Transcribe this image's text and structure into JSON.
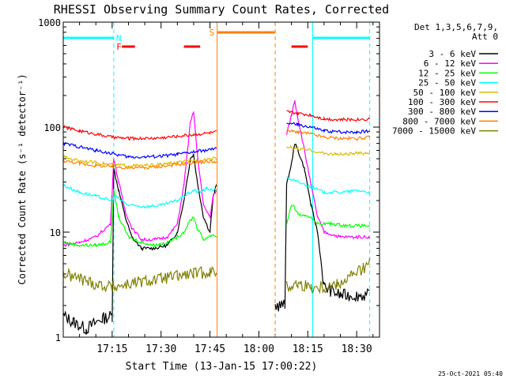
{
  "chart_data": {
    "type": "line",
    "title": "RHESSI Observing Summary Count Rates, Corrected",
    "ylabel": "Corrected Count Rate (s⁻¹ detector⁻¹)",
    "xlabel": "Start Time (13-Jan-15 17:00:22)",
    "yscale": "log",
    "ylim": [
      1,
      1000
    ],
    "xlim_minutes": [
      0,
      97
    ],
    "x_ticks": [
      {
        "label": "17:15",
        "minute": 15
      },
      {
        "label": "17:30",
        "minute": 30
      },
      {
        "label": "17:45",
        "minute": 45
      },
      {
        "label": "18:00",
        "minute": 60
      },
      {
        "label": "18:15",
        "minute": 75
      },
      {
        "label": "18:30",
        "minute": 90
      }
    ],
    "y_ticks": [
      {
        "label": "1",
        "value": 1
      },
      {
        "label": "10",
        "value": 10
      },
      {
        "label": "100",
        "value": 100
      },
      {
        "label": "1000",
        "value": 1000
      }
    ],
    "legend_header": [
      "Det 1,3,5,6,7,9,",
      "Att 0"
    ],
    "legend_position": "right",
    "series": [
      {
        "name": "3 - 6 keV",
        "color": "#000000",
        "points": [
          [
            0,
            1.6
          ],
          [
            3,
            1.4
          ],
          [
            7,
            1.2
          ],
          [
            12,
            1.5
          ],
          [
            15,
            1.6
          ],
          [
            15.5,
            40
          ],
          [
            17,
            25
          ],
          [
            19,
            14
          ],
          [
            21,
            9
          ],
          [
            24,
            7
          ],
          [
            28,
            7
          ],
          [
            32,
            7.5
          ],
          [
            35,
            10
          ],
          [
            37,
            20
          ],
          [
            39,
            50
          ],
          [
            40,
            55
          ],
          [
            41,
            32
          ],
          [
            43,
            14
          ],
          [
            45,
            10
          ],
          [
            46,
            22
          ],
          [
            47,
            28
          ],
          [
            65,
            2
          ],
          [
            68,
            2
          ],
          [
            68.5,
            28
          ],
          [
            70,
            45
          ],
          [
            71,
            70
          ],
          [
            72,
            60
          ],
          [
            74,
            40
          ],
          [
            76,
            18
          ],
          [
            78,
            10
          ],
          [
            80,
            3
          ],
          [
            85,
            2.5
          ],
          [
            90,
            2.5
          ],
          [
            94,
            2.5
          ]
        ]
      },
      {
        "name": "6 - 12 keV",
        "color": "#ff00ff",
        "points": [
          [
            0,
            7.5
          ],
          [
            5,
            8
          ],
          [
            10,
            9
          ],
          [
            14.5,
            12
          ],
          [
            15.5,
            50
          ],
          [
            17,
            30
          ],
          [
            19,
            16
          ],
          [
            21,
            11
          ],
          [
            24,
            8.5
          ],
          [
            28,
            8.5
          ],
          [
            32,
            9
          ],
          [
            35,
            12
          ],
          [
            37,
            28
          ],
          [
            39,
            110
          ],
          [
            40,
            140
          ],
          [
            41,
            60
          ],
          [
            43,
            18
          ],
          [
            45,
            14
          ],
          [
            46,
            22
          ],
          [
            47,
            25
          ],
          [
            68.5,
            85
          ],
          [
            70,
            130
          ],
          [
            71,
            180
          ],
          [
            72,
            120
          ],
          [
            74,
            60
          ],
          [
            76,
            28
          ],
          [
            78,
            14
          ],
          [
            80,
            10
          ],
          [
            85,
            9
          ],
          [
            90,
            9
          ],
          [
            94,
            9
          ]
        ]
      },
      {
        "name": "12 - 25 keV",
        "color": "#00ff00",
        "points": [
          [
            0,
            8
          ],
          [
            5,
            7.5
          ],
          [
            10,
            7.5
          ],
          [
            14.5,
            8
          ],
          [
            15.5,
            25
          ],
          [
            17,
            14
          ],
          [
            20,
            9
          ],
          [
            24,
            8
          ],
          [
            28,
            7.5
          ],
          [
            32,
            8
          ],
          [
            35,
            9
          ],
          [
            37,
            10
          ],
          [
            39,
            13
          ],
          [
            40,
            14
          ],
          [
            41,
            11
          ],
          [
            43,
            8.5
          ],
          [
            46,
            9.5
          ],
          [
            47,
            9
          ],
          [
            68.5,
            12
          ],
          [
            70,
            18
          ],
          [
            71,
            17
          ],
          [
            72,
            15
          ],
          [
            74,
            14
          ],
          [
            76,
            14
          ],
          [
            78,
            12
          ],
          [
            82,
            12
          ],
          [
            88,
            11.5
          ],
          [
            94,
            11.5
          ]
        ]
      },
      {
        "name": "25 - 50 keV",
        "color": "#00ffff",
        "points": [
          [
            0,
            28
          ],
          [
            5,
            24
          ],
          [
            10,
            22
          ],
          [
            14.5,
            20
          ],
          [
            16,
            22
          ],
          [
            20,
            18
          ],
          [
            25,
            17.5
          ],
          [
            30,
            18
          ],
          [
            35,
            20
          ],
          [
            38,
            23
          ],
          [
            40,
            25
          ],
          [
            42,
            24
          ],
          [
            44,
            26
          ],
          [
            47,
            25
          ],
          [
            68.5,
            33
          ],
          [
            72,
            30
          ],
          [
            76,
            27
          ],
          [
            80,
            24
          ],
          [
            86,
            24
          ],
          [
            90,
            25
          ],
          [
            94,
            24
          ]
        ]
      },
      {
        "name": "50 - 100 keV",
        "color": "#ddbb00",
        "points": [
          [
            0,
            52
          ],
          [
            5,
            48
          ],
          [
            10,
            46
          ],
          [
            15,
            44
          ],
          [
            20,
            43
          ],
          [
            25,
            43
          ],
          [
            30,
            44
          ],
          [
            35,
            46
          ],
          [
            40,
            48
          ],
          [
            45,
            50
          ],
          [
            47,
            50
          ],
          [
            68.5,
            65
          ],
          [
            72,
            62
          ],
          [
            76,
            60
          ],
          [
            80,
            56
          ],
          [
            85,
            55
          ],
          [
            90,
            56
          ],
          [
            94,
            57
          ]
        ]
      },
      {
        "name": "100 - 300 keV",
        "color": "#ff0000",
        "points": [
          [
            0,
            100
          ],
          [
            5,
            92
          ],
          [
            10,
            86
          ],
          [
            15,
            80
          ],
          [
            20,
            78
          ],
          [
            25,
            78
          ],
          [
            30,
            79
          ],
          [
            35,
            82
          ],
          [
            40,
            85
          ],
          [
            45,
            88
          ],
          [
            47,
            90
          ],
          [
            68.5,
            140
          ],
          [
            72,
            135
          ],
          [
            76,
            130
          ],
          [
            80,
            120
          ],
          [
            85,
            118
          ],
          [
            90,
            118
          ],
          [
            94,
            120
          ]
        ]
      },
      {
        "name": "300 - 800 keV",
        "color": "#0000ff",
        "points": [
          [
            0,
            70
          ],
          [
            5,
            65
          ],
          [
            10,
            60
          ],
          [
            15,
            56
          ],
          [
            20,
            52
          ],
          [
            25,
            52
          ],
          [
            30,
            53
          ],
          [
            35,
            55
          ],
          [
            40,
            58
          ],
          [
            45,
            61
          ],
          [
            47,
            62
          ],
          [
            68.5,
            110
          ],
          [
            72,
            105
          ],
          [
            76,
            100
          ],
          [
            80,
            92
          ],
          [
            85,
            90
          ],
          [
            90,
            90
          ],
          [
            94,
            92
          ]
        ]
      },
      {
        "name": "800 - 7000 keV",
        "color": "#ff7f00",
        "points": [
          [
            0,
            48
          ],
          [
            5,
            45
          ],
          [
            10,
            43
          ],
          [
            15,
            42
          ],
          [
            20,
            41
          ],
          [
            25,
            41
          ],
          [
            30,
            42
          ],
          [
            35,
            44
          ],
          [
            40,
            46
          ],
          [
            45,
            47
          ],
          [
            47,
            47
          ],
          [
            68.5,
            92
          ],
          [
            72,
            90
          ],
          [
            76,
            86
          ],
          [
            80,
            80
          ],
          [
            85,
            78
          ],
          [
            90,
            78
          ],
          [
            94,
            80
          ]
        ]
      },
      {
        "name": "7000 - 15000 keV",
        "color": "#808000",
        "points": [
          [
            0,
            4
          ],
          [
            5,
            3.6
          ],
          [
            10,
            3.2
          ],
          [
            15,
            3
          ],
          [
            20,
            3.2
          ],
          [
            25,
            3.4
          ],
          [
            30,
            3.6
          ],
          [
            35,
            3.8
          ],
          [
            40,
            4
          ],
          [
            45,
            4.2
          ],
          [
            47,
            4.2
          ],
          [
            68.5,
            3
          ],
          [
            72,
            3.2
          ],
          [
            76,
            3
          ],
          [
            80,
            3
          ],
          [
            84,
            3.2
          ],
          [
            88,
            3.8
          ],
          [
            92,
            4.5
          ],
          [
            94,
            5
          ]
        ]
      }
    ],
    "annotations": {
      "F": {
        "label": "F",
        "color": "#ff0000",
        "intervals": [
          [
            18,
            22
          ],
          [
            37,
            42
          ],
          [
            70,
            75
          ]
        ]
      },
      "S": {
        "label": "S",
        "color": "#ff7f00",
        "intervals": [
          [
            47.2,
            65
          ]
        ]
      },
      "N": {
        "label": "N",
        "color": "#00ffff",
        "intervals": [
          [
            0,
            15.5
          ],
          [
            76.5,
            94
          ]
        ]
      }
    },
    "event_lines": [
      {
        "minute": 47.2,
        "color": "#ff7f00",
        "style": "solid"
      },
      {
        "minute": 65,
        "color": "#ff7f00",
        "style": "dashed"
      },
      {
        "minute": 15.5,
        "color": "#00ffff",
        "style": "dashed"
      },
      {
        "minute": 76.5,
        "color": "#00ffff",
        "style": "solid"
      },
      {
        "minute": 94,
        "color": "#00ffff",
        "style": "dashed"
      }
    ]
  },
  "footer": {
    "timestamp": "25-Oct-2021 05:40"
  }
}
